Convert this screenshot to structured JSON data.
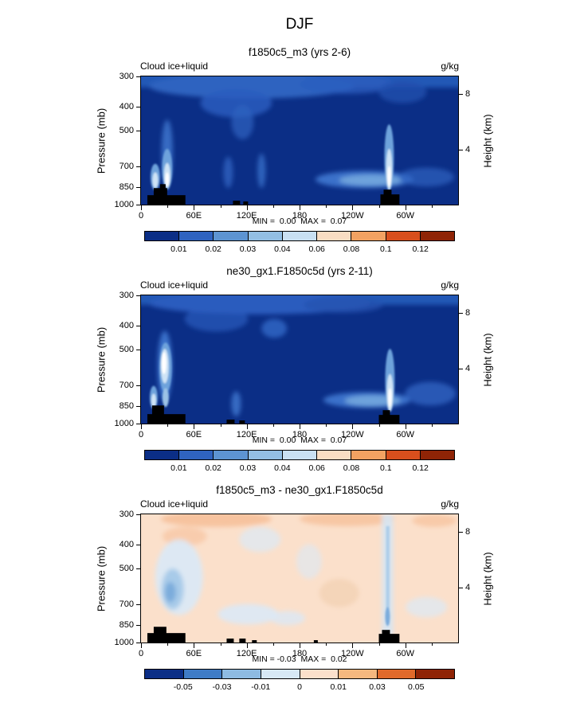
{
  "figure": {
    "title": "DJF",
    "field_label": "Cloud ice+liquid",
    "units": "g/kg",
    "ylabel_left": "Pressure (mb)",
    "ylabel_right": "Height (km)"
  },
  "axes": {
    "pressure_ticks": [
      300,
      400,
      500,
      700,
      850,
      1000
    ],
    "pressure_range": [
      300,
      1000
    ],
    "height_ticks": [
      8,
      4
    ],
    "lon_tick_labels": [
      "0",
      "60E",
      "120E",
      "180",
      "120W",
      "60W"
    ],
    "lon_tick_degrees": [
      0,
      60,
      120,
      180,
      240,
      300
    ],
    "lon_minor_degrees": [
      30,
      90,
      150,
      210,
      270,
      330
    ],
    "lon_range_degrees": [
      0,
      360
    ]
  },
  "panels": [
    {
      "subtitle": "f1850c5_m3 (yrs 2-6)",
      "minmax": "MIN =  0.00  MAX =  0.07",
      "colorbar": {
        "colors": [
          "#0b2e86",
          "#2f63c0",
          "#5d94d2",
          "#93bfe4",
          "#c9e0f2",
          "#f9ddc3",
          "#f2a262",
          "#d84f1d",
          "#8f2406"
        ],
        "labels": [
          "0.01",
          "0.02",
          "0.03",
          "0.04",
          "0.06",
          "0.08",
          "0.1",
          "0.12"
        ]
      }
    },
    {
      "subtitle": "ne30_gx1.F1850c5d (yrs 2-11)",
      "minmax": "MIN =  0.00  MAX =  0.07",
      "colorbar": {
        "colors": [
          "#0b2e86",
          "#2f63c0",
          "#5d94d2",
          "#93bfe4",
          "#c9e0f2",
          "#f9ddc3",
          "#f2a262",
          "#d84f1d",
          "#8f2406"
        ],
        "labels": [
          "0.01",
          "0.02",
          "0.03",
          "0.04",
          "0.06",
          "0.08",
          "0.1",
          "0.12"
        ]
      }
    },
    {
      "subtitle": "f1850c5_m3 - ne30_gx1.F1850c5d",
      "minmax": "MIN = -0.03  MAX =  0.02",
      "colorbar": {
        "colors": [
          "#0b2e86",
          "#3f7cc6",
          "#8ebbe2",
          "#d7e8f5",
          "#fbe0cb",
          "#f5b87f",
          "#e06a2b",
          "#8f2406"
        ],
        "labels": [
          "-0.05",
          "-0.03",
          "-0.01",
          "0",
          "0.01",
          "0.03",
          "0.05"
        ]
      }
    }
  ],
  "chart_data": [
    {
      "type": "heatmap",
      "subtype": "filled-contour longitude-pressure cross section",
      "title": "f1850c5_m3 (yrs 2-6)",
      "field": "Cloud ice+liquid",
      "units": "g/kg",
      "season": "DJF",
      "x_axis": {
        "tick_labels": [
          "0",
          "60E",
          "120E",
          "180",
          "120W",
          "60W"
        ],
        "range_degrees": [
          0,
          360
        ]
      },
      "y_axis_left": {
        "label": "Pressure (mb)",
        "ticks": [
          300,
          400,
          500,
          700,
          850,
          1000
        ],
        "scale": "log",
        "inverted": true
      },
      "y_axis_right": {
        "label": "Height (km)",
        "ticks": [
          8,
          4
        ]
      },
      "min": 0.0,
      "max": 0.07,
      "contour_levels": [
        0.01,
        0.02,
        0.03,
        0.04,
        0.06,
        0.08,
        0.1,
        0.12
      ],
      "legend_position": "bottom colorbar"
    },
    {
      "type": "heatmap",
      "subtype": "filled-contour longitude-pressure cross section",
      "title": "ne30_gx1.F1850c5d (yrs 2-11)",
      "field": "Cloud ice+liquid",
      "units": "g/kg",
      "season": "DJF",
      "x_axis": {
        "tick_labels": [
          "0",
          "60E",
          "120E",
          "180",
          "120W",
          "60W"
        ],
        "range_degrees": [
          0,
          360
        ]
      },
      "y_axis_left": {
        "label": "Pressure (mb)",
        "ticks": [
          300,
          400,
          500,
          700,
          850,
          1000
        ],
        "scale": "log",
        "inverted": true
      },
      "y_axis_right": {
        "label": "Height (km)",
        "ticks": [
          8,
          4
        ]
      },
      "min": 0.0,
      "max": 0.07,
      "contour_levels": [
        0.01,
        0.02,
        0.03,
        0.04,
        0.06,
        0.08,
        0.1,
        0.12
      ],
      "legend_position": "bottom colorbar"
    },
    {
      "type": "heatmap",
      "subtype": "filled-contour difference cross section",
      "title": "f1850c5_m3 - ne30_gx1.F1850c5d",
      "field": "Cloud ice+liquid",
      "units": "g/kg",
      "season": "DJF",
      "x_axis": {
        "tick_labels": [
          "0",
          "60E",
          "120E",
          "180",
          "120W",
          "60W"
        ],
        "range_degrees": [
          0,
          360
        ]
      },
      "y_axis_left": {
        "label": "Pressure (mb)",
        "ticks": [
          300,
          400,
          500,
          700,
          850,
          1000
        ],
        "scale": "log",
        "inverted": true
      },
      "y_axis_right": {
        "label": "Height (km)",
        "ticks": [
          8,
          4
        ]
      },
      "min": -0.03,
      "max": 0.02,
      "contour_levels": [
        -0.05,
        -0.03,
        -0.01,
        0,
        0.01,
        0.03,
        0.05
      ],
      "legend_position": "bottom colorbar"
    }
  ]
}
